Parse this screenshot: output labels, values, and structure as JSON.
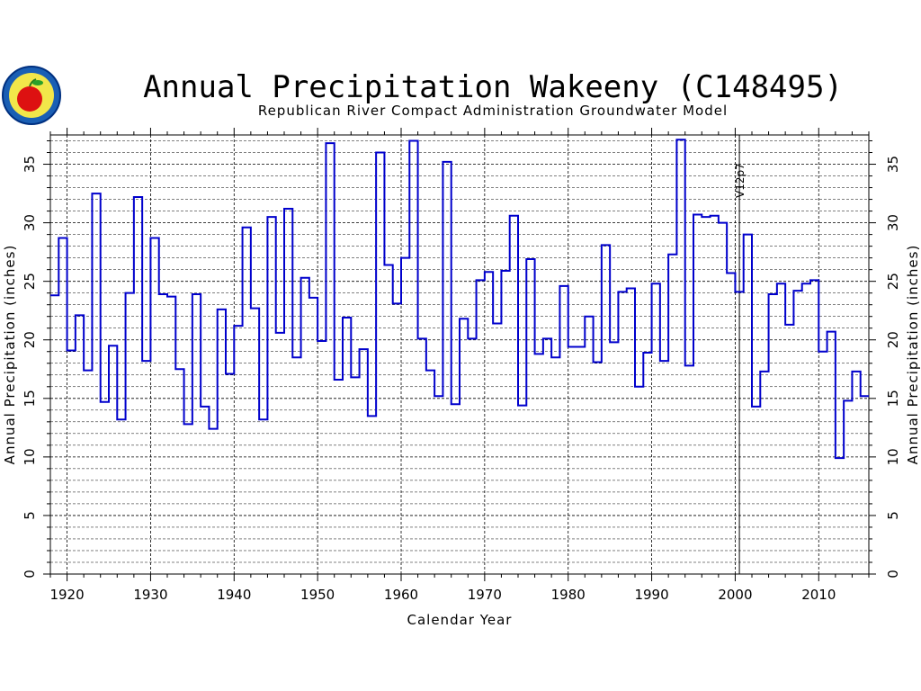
{
  "chart_data": {
    "type": "line",
    "step": true,
    "title": "Annual Precipitation Wakeeny (C148495)",
    "subtitle": "Republican River Compact Administration Groundwater Model",
    "xlabel": "Calendar Year",
    "ylabel": "Annual Precipitation (inches)",
    "xlim": [
      1918,
      2016
    ],
    "ylim": [
      0,
      37.5
    ],
    "x_ticks": [
      1920,
      1930,
      1940,
      1950,
      1960,
      1970,
      1980,
      1990,
      2000,
      2010
    ],
    "y_ticks": [
      0,
      5,
      10,
      15,
      20,
      25,
      30,
      35
    ],
    "grid": true,
    "series_color": "#0000cc",
    "annotation": {
      "text": "V12p7",
      "x": 2000.5
    },
    "series": [
      {
        "x": [
          1918,
          1919,
          1920,
          1921,
          1922,
          1923,
          1924,
          1925,
          1926,
          1927,
          1928,
          1929,
          1930,
          1931,
          1932,
          1933,
          1934,
          1935,
          1936,
          1937,
          1938,
          1939,
          1940,
          1941,
          1942,
          1943,
          1944,
          1945,
          1946,
          1947,
          1948,
          1949,
          1950,
          1951,
          1952,
          1953,
          1954,
          1955,
          1956,
          1957,
          1958,
          1959,
          1960,
          1961,
          1962,
          1963,
          1964,
          1965,
          1966,
          1967,
          1968,
          1969,
          1970,
          1971,
          1972,
          1973,
          1974,
          1975,
          1976,
          1977,
          1978,
          1979,
          1980,
          1981,
          1982,
          1983,
          1984,
          1985,
          1986,
          1987,
          1988,
          1989,
          1990,
          1991,
          1992,
          1993,
          1994,
          1995,
          1996,
          1997,
          1998,
          1999,
          2000,
          2001,
          2002,
          2003,
          2004,
          2005,
          2006,
          2007,
          2008,
          2009,
          2010,
          2011,
          2012,
          2013,
          2014,
          2015
        ],
        "values": [
          23.8,
          28.7,
          19.1,
          22.1,
          17.4,
          32.5,
          14.7,
          19.5,
          13.2,
          24.0,
          32.2,
          18.2,
          28.7,
          23.9,
          23.7,
          17.5,
          12.8,
          23.9,
          14.3,
          12.4,
          22.6,
          17.1,
          21.2,
          29.6,
          22.7,
          13.2,
          30.5,
          20.6,
          31.2,
          18.5,
          25.3,
          23.6,
          19.9,
          36.8,
          16.6,
          21.9,
          16.8,
          19.2,
          13.5,
          36.0,
          26.4,
          23.1,
          27.0,
          37.0,
          20.1,
          17.4,
          15.2,
          35.2,
          14.5,
          21.8,
          20.1,
          25.1,
          25.8,
          21.4,
          25.9,
          30.6,
          14.4,
          26.9,
          18.8,
          20.1,
          18.5,
          24.6,
          19.4,
          19.4,
          22.0,
          18.1,
          28.1,
          19.8,
          24.1,
          24.4,
          16.0,
          18.9,
          24.8,
          18.2,
          27.3,
          37.1,
          17.8,
          30.7,
          30.5,
          30.6,
          30.0,
          25.7,
          24.1,
          29.0,
          14.3,
          17.3,
          23.9,
          24.8,
          21.3,
          24.2,
          24.8,
          25.1,
          19.0,
          20.7,
          9.9,
          14.8,
          17.3,
          15.2
        ]
      }
    ]
  }
}
